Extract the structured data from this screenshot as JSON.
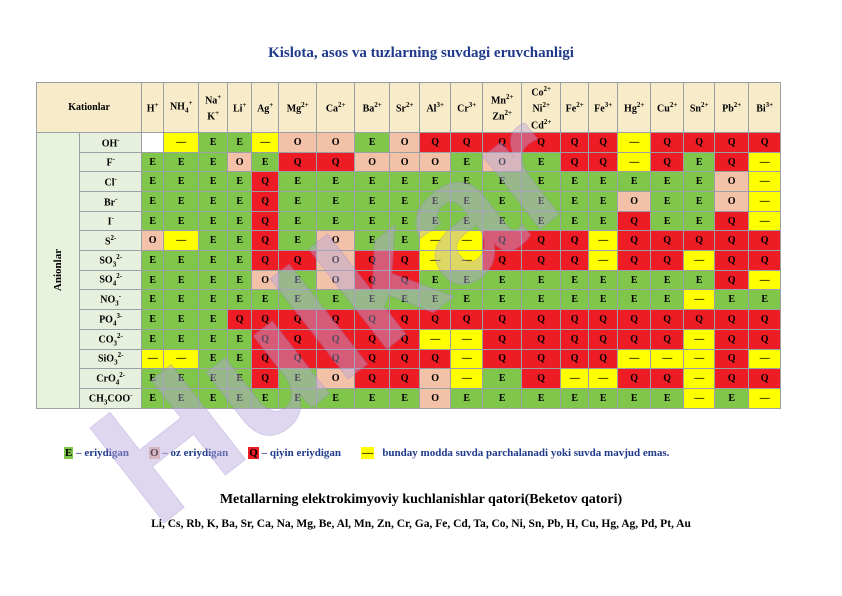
{
  "title": "Kislota, asos va tuzlarning suvdagi eruvchanligi",
  "header": {
    "kationlar_label": "Kationlar",
    "anionlar_label": "Anionlar",
    "cations": [
      {
        "base": "H",
        "sup": "+"
      },
      {
        "base": "NH",
        "sub": "4",
        "sup": "+"
      },
      {
        "base": "Na",
        "sup": "+",
        "line2": "K",
        "line2sup": "+"
      },
      {
        "base": "Li",
        "sup": "+"
      },
      {
        "base": "Ag",
        "sup": "+"
      },
      {
        "base": "Mg",
        "sup": "2+"
      },
      {
        "base": "Ca",
        "sup": "2+"
      },
      {
        "base": "Ba",
        "sup": "2+"
      },
      {
        "base": "Sr",
        "sup": "2+"
      },
      {
        "base": "Al",
        "sup": "3+"
      },
      {
        "base": "Cr",
        "sup": "3+"
      },
      {
        "base": "Mn",
        "sup": "2+",
        "line2": "Zn",
        "line2sup": "2+"
      },
      {
        "base": "Co",
        "sup": "2+",
        "line2": "Ni",
        "line2sup": "2+",
        "line3": "Cd",
        "line3sup": "2+"
      },
      {
        "base": "Fe",
        "sup": "2+"
      },
      {
        "base": "Fe",
        "sup": "3+"
      },
      {
        "base": "Hg",
        "sup": "2+"
      },
      {
        "base": "Cu",
        "sup": "2+"
      },
      {
        "base": "Sn",
        "sup": "2+"
      },
      {
        "base": "Pb",
        "sup": "2+"
      },
      {
        "base": "Bi",
        "sup": "3+"
      }
    ]
  },
  "rows": [
    {
      "anion": {
        "base": "OH",
        "sup": "-"
      },
      "cells": [
        "W",
        "D",
        "E",
        "E",
        "D",
        "O",
        "O",
        "E",
        "O",
        "Q",
        "Q",
        "Q",
        "Q",
        "Q",
        "Q",
        "D",
        "Q",
        "Q",
        "Q",
        "Q"
      ]
    },
    {
      "anion": {
        "base": "F",
        "sup": "-"
      },
      "cells": [
        "E",
        "E",
        "E",
        "O",
        "E",
        "Q",
        "Q",
        "O",
        "O",
        "O",
        "E",
        "O",
        "E",
        "Q",
        "Q",
        "D",
        "Q",
        "E",
        "Q",
        "D"
      ]
    },
    {
      "anion": {
        "base": "Cl",
        "sup": "-"
      },
      "cells": [
        "E",
        "E",
        "E",
        "E",
        "Q",
        "E",
        "E",
        "E",
        "E",
        "E",
        "E",
        "E",
        "E",
        "E",
        "E",
        "E",
        "E",
        "E",
        "O",
        "D"
      ]
    },
    {
      "anion": {
        "base": "Br",
        "sup": "-"
      },
      "cells": [
        "E",
        "E",
        "E",
        "E",
        "Q",
        "E",
        "E",
        "E",
        "E",
        "E",
        "E",
        "E",
        "E",
        "E",
        "E",
        "O",
        "E",
        "E",
        "O",
        "D"
      ]
    },
    {
      "anion": {
        "base": "I",
        "sup": "-"
      },
      "cells": [
        "E",
        "E",
        "E",
        "E",
        "Q",
        "E",
        "E",
        "E",
        "E",
        "E",
        "E",
        "E",
        "E",
        "E",
        "E",
        "Q",
        "E",
        "E",
        "Q",
        "D"
      ]
    },
    {
      "anion": {
        "base": "S",
        "sup": "2-"
      },
      "cells": [
        "O",
        "D",
        "E",
        "E",
        "Q",
        "E",
        "O",
        "E",
        "E",
        "D",
        "D",
        "Q",
        "Q",
        "Q",
        "D",
        "Q",
        "Q",
        "Q",
        "Q",
        "Q"
      ]
    },
    {
      "anion": {
        "base": "SO",
        "sub": "3",
        "sup": "2-"
      },
      "cells": [
        "E",
        "E",
        "E",
        "E",
        "Q",
        "Q",
        "O",
        "Q",
        "Q",
        "D",
        "D",
        "Q",
        "Q",
        "Q",
        "D",
        "Q",
        "Q",
        "D",
        "Q",
        "Q"
      ]
    },
    {
      "anion": {
        "base": "SO",
        "sub": "4",
        "sup": "2-"
      },
      "cells": [
        "E",
        "E",
        "E",
        "E",
        "O",
        "E",
        "O",
        "Q",
        "Q",
        "E",
        "E",
        "E",
        "E",
        "E",
        "E",
        "E",
        "E",
        "E",
        "Q",
        "D"
      ]
    },
    {
      "anion": {
        "base": "NO",
        "sub": "3",
        "sup": "-"
      },
      "cells": [
        "E",
        "E",
        "E",
        "E",
        "E",
        "E",
        "E",
        "E",
        "E",
        "E",
        "E",
        "E",
        "E",
        "E",
        "E",
        "E",
        "E",
        "D",
        "E",
        "E"
      ]
    },
    {
      "anion": {
        "base": "PO",
        "sub": "4",
        "sup": "3-"
      },
      "cells": [
        "E",
        "E",
        "E",
        "Q",
        "Q",
        "Q",
        "Q",
        "Q",
        "Q",
        "Q",
        "Q",
        "Q",
        "Q",
        "Q",
        "Q",
        "Q",
        "Q",
        "Q",
        "Q",
        "Q"
      ]
    },
    {
      "anion": {
        "base": "CO",
        "sub": "3",
        "sup": "2-"
      },
      "cells": [
        "E",
        "E",
        "E",
        "E",
        "Q",
        "Q",
        "Q",
        "Q",
        "Q",
        "D",
        "D",
        "Q",
        "Q",
        "Q",
        "Q",
        "Q",
        "Q",
        "D",
        "Q",
        "Q"
      ]
    },
    {
      "anion": {
        "base": "SiO",
        "sub": "3",
        "sup": "2-"
      },
      "cells": [
        "D",
        "D",
        "E",
        "E",
        "Q",
        "Q",
        "Q",
        "Q",
        "Q",
        "Q",
        "D",
        "Q",
        "Q",
        "Q",
        "Q",
        "D",
        "D",
        "D",
        "Q",
        "D"
      ]
    },
    {
      "anion": {
        "base": "CrO",
        "sub": "4",
        "sup": "2-"
      },
      "cells": [
        "E",
        "E",
        "E",
        "E",
        "Q",
        "E",
        "O",
        "Q",
        "Q",
        "O",
        "D",
        "E",
        "Q",
        "D",
        "D",
        "Q",
        "Q",
        "D",
        "Q",
        "Q"
      ]
    },
    {
      "anion": {
        "base": "CH",
        "sub": "3",
        "tail": "COO",
        "sup": "-"
      },
      "cells": [
        "E",
        "E",
        "E",
        "E",
        "E",
        "E",
        "E",
        "E",
        "E",
        "O",
        "E",
        "E",
        "E",
        "E",
        "E",
        "E",
        "E",
        "D",
        "E",
        "D"
      ]
    }
  ],
  "cell_text": {
    "E": "E",
    "O": "O",
    "Q": "Q",
    "D": "—",
    "W": ""
  },
  "cell_colors": {
    "E": "#7fc64b",
    "O": "#f3c0a8",
    "Q": "#ee1c24",
    "D": "#ffff00",
    "W": "#ffffff"
  },
  "legend": {
    "e_key": "E",
    "e_text": " – eriydigan",
    "o_key": "O",
    "o_text": " – oz eriydigan",
    "q_key": "Q",
    "q_text": " – qiyin eriydigan",
    "d_key": "—",
    "d_text": "bunday modda suvda parchalanadi yoki suvda mavjud emas."
  },
  "beketov_title": "Metallarning elektrokimyoviy kuchlanishlar qatori(Beketov qatori)",
  "beketov_series": "Li, Cs, Rb, K, Ba, Sr, Ca, Na, Mg, Be,    Al, Mn, Zn, Cr, Ga, Fe, Cd, Ta, Co, Ni, Sn, Pb,   H, Cu, Hg, Ag, Pd, Pt, Au",
  "watermark": "Hulkar"
}
